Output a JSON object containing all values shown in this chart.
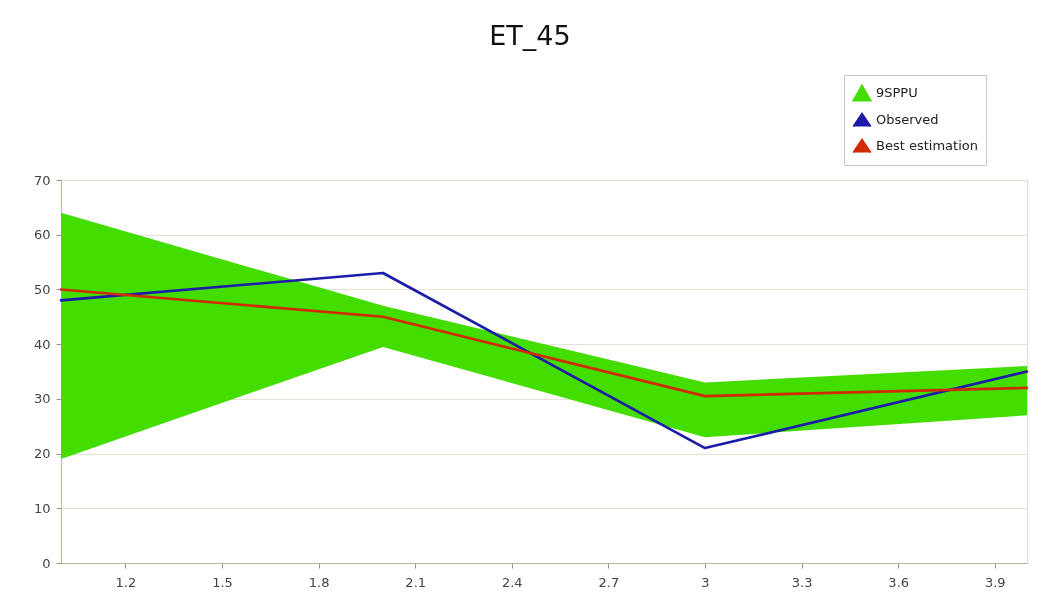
{
  "chart_data": {
    "type": "line",
    "title": "ET_45",
    "x": [
      1,
      2,
      3,
      4
    ],
    "xlim": [
      1,
      4
    ],
    "xticks": [
      1.2,
      1.5,
      1.8,
      2.1,
      2.4,
      2.7,
      3,
      3.3,
      3.6,
      3.9
    ],
    "ylim": [
      0,
      70
    ],
    "yticks": [
      0,
      10,
      20,
      30,
      40,
      50,
      60,
      70
    ],
    "grid": "y",
    "legend": "top right",
    "marker": "none",
    "line_style": "solid",
    "series": [
      {
        "name": "9SPPU",
        "type": "area",
        "color": "#44dd00",
        "values": [
          null,
          null,
          null,
          null
        ],
        "lower": [
          19,
          39.5,
          23,
          27
        ],
        "upper": [
          64,
          47,
          33,
          36
        ]
      },
      {
        "name": "Observed",
        "color": "#1c1ca8",
        "values": [
          48,
          53,
          21,
          35
        ]
      },
      {
        "name": "Best estimation",
        "color": "#d02a00",
        "values": [
          50,
          45,
          30.5,
          32
        ]
      }
    ]
  }
}
